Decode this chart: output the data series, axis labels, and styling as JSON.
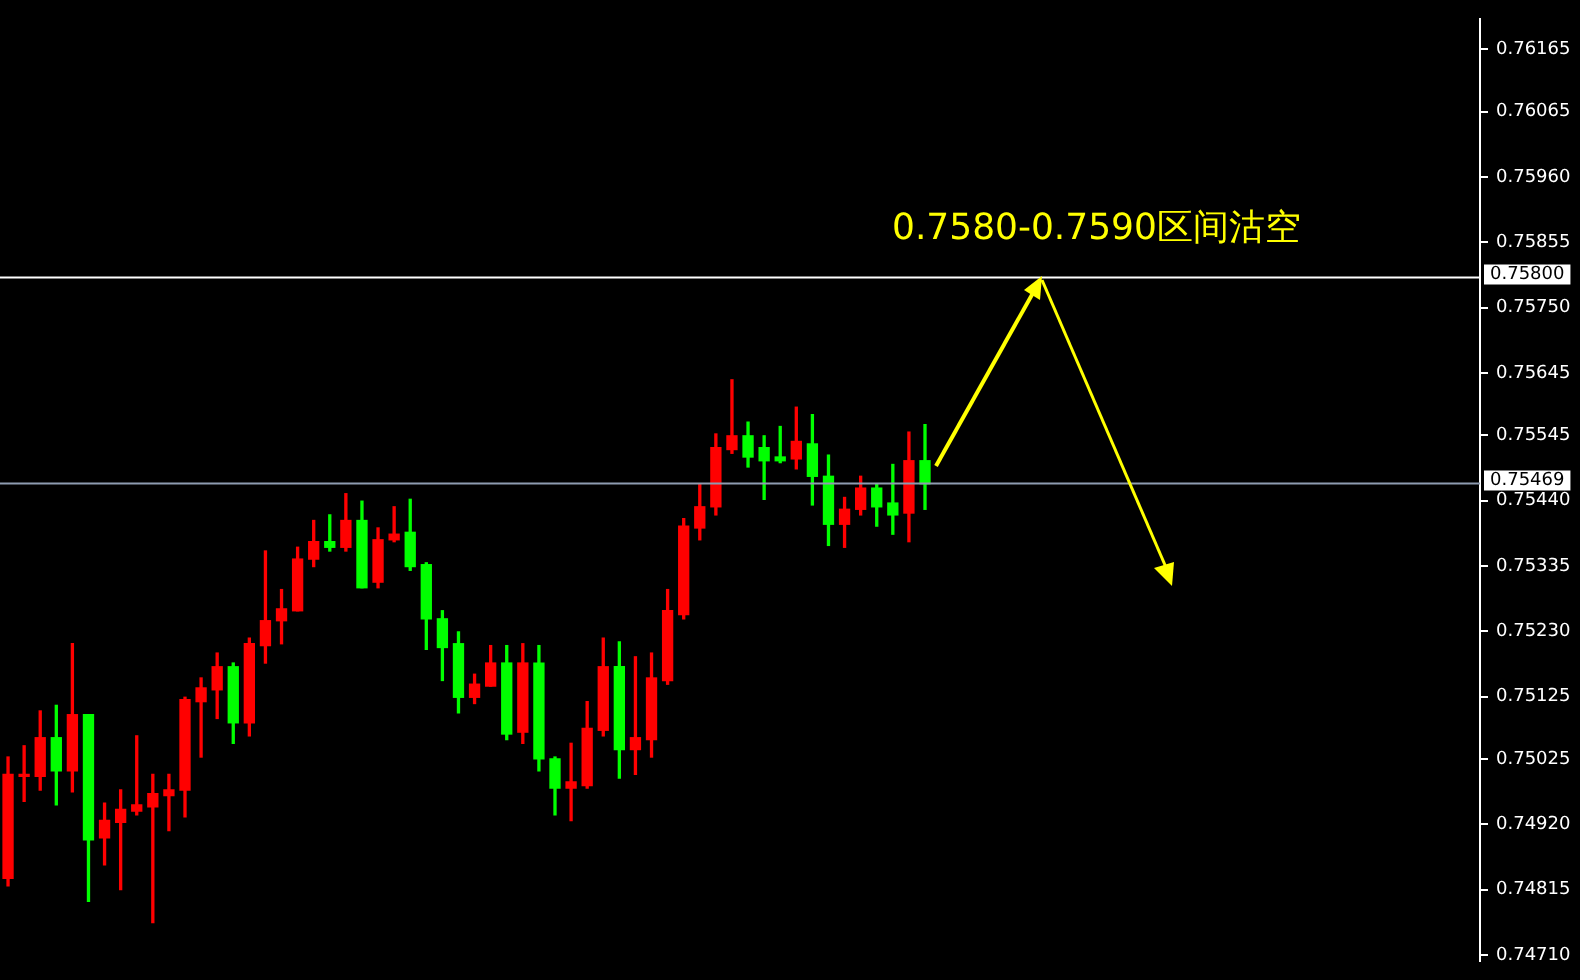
{
  "chart_data": {
    "type": "candlestick",
    "categories": [
      null,
      null,
      null,
      null,
      null,
      null,
      null,
      null,
      null,
      null,
      null,
      null,
      null,
      null,
      null,
      null,
      null,
      null,
      null,
      null,
      null,
      null,
      null,
      null,
      null,
      null,
      null,
      null,
      null,
      null,
      null,
      null,
      null,
      null,
      null,
      null,
      null,
      null,
      null,
      null,
      null,
      null,
      null,
      null,
      null,
      null,
      null,
      null,
      null,
      null,
      null,
      null,
      null,
      null,
      null,
      null,
      null,
      null,
      null,
      null,
      null,
      null,
      null,
      null,
      null,
      null,
      null,
      null,
      null,
      null,
      null,
      null,
      null,
      null,
      null,
      null,
      null,
      null,
      null,
      null,
      null,
      null,
      null,
      null,
      null,
      null,
      null,
      null,
      null,
      null,
      null,
      null
    ],
    "ohlc": [
      [
        0.74833,
        0.75028,
        0.74821,
        0.75
      ],
      [
        0.74997,
        0.75046,
        0.74957,
        0.75
      ],
      [
        0.74997,
        0.75102,
        0.74975,
        0.75059
      ],
      [
        0.75059,
        0.75111,
        0.74951,
        0.75006
      ],
      [
        0.75006,
        0.7521,
        0.74972,
        0.75096
      ],
      [
        0.75096,
        0.75096,
        0.74796,
        0.74895
      ],
      [
        0.74898,
        0.74954,
        0.74855,
        0.74926
      ],
      [
        0.74923,
        0.74975,
        0.74815,
        0.74944
      ],
      [
        0.74941,
        0.75062,
        0.74935,
        0.74951
      ],
      [
        0.74948,
        0.75,
        0.74762,
        0.74969
      ],
      [
        0.74966,
        0.75,
        0.7491,
        0.74975
      ],
      [
        0.74975,
        0.75124,
        0.74932,
        0.7512
      ],
      [
        0.75117,
        0.75155,
        0.75028,
        0.75139
      ],
      [
        0.75136,
        0.75195,
        0.7509,
        0.75173
      ],
      [
        0.75173,
        0.75179,
        0.7505,
        0.75083
      ],
      [
        0.75083,
        0.75219,
        0.75062,
        0.7521
      ],
      [
        0.75207,
        0.75359,
        0.75179,
        0.75247
      ],
      [
        0.75247,
        0.75297,
        0.7521,
        0.75266
      ],
      [
        0.75263,
        0.75365,
        0.75263,
        0.75346
      ],
      [
        0.75346,
        0.75408,
        0.75334,
        0.75374
      ],
      [
        0.75374,
        0.75417,
        0.75359,
        0.75365
      ],
      [
        0.75365,
        0.75451,
        0.75359,
        0.75408
      ],
      [
        0.75408,
        0.75439,
        0.753,
        0.753
      ],
      [
        0.75309,
        0.75396,
        0.753,
        0.75377
      ],
      [
        0.75377,
        0.7543,
        0.75374,
        0.75386
      ],
      [
        0.75389,
        0.75442,
        0.75328,
        0.75334
      ],
      [
        0.75337,
        0.7534,
        0.75201,
        0.7525
      ],
      [
        0.7525,
        0.75263,
        0.75151,
        0.75204
      ],
      [
        0.7521,
        0.75229,
        0.75099,
        0.75124
      ],
      [
        0.75124,
        0.75161,
        0.75114,
        0.75145
      ],
      [
        0.75142,
        0.75207,
        0.75142,
        0.75179
      ],
      [
        0.75179,
        0.75207,
        0.75056,
        0.75065
      ],
      [
        0.75068,
        0.7521,
        0.7505,
        0.75179
      ],
      [
        0.75179,
        0.75207,
        0.75006,
        0.75025
      ],
      [
        0.75025,
        0.75028,
        0.74935,
        0.74978
      ],
      [
        0.74978,
        0.7505,
        0.74926,
        0.74988
      ],
      [
        0.74982,
        0.75117,
        0.74978,
        0.75074
      ],
      [
        0.75071,
        0.75219,
        0.75062,
        0.75173
      ],
      [
        0.75173,
        0.75213,
        0.74994,
        0.7504
      ],
      [
        0.7504,
        0.75189,
        0.75,
        0.75059
      ],
      [
        0.75056,
        0.75195,
        0.75028,
        0.75155
      ],
      [
        0.75151,
        0.75297,
        0.75145,
        0.75263
      ],
      [
        0.75257,
        0.75411,
        0.7525,
        0.75399
      ],
      [
        0.75396,
        0.75467,
        0.75377,
        0.7543
      ],
      [
        0.7543,
        0.75547,
        0.75417,
        0.75525
      ],
      [
        0.75522,
        0.75634,
        0.75516,
        0.75544
      ],
      [
        0.75544,
        0.75566,
        0.75494,
        0.7551
      ],
      [
        0.75525,
        0.75544,
        0.75442,
        0.75504
      ],
      [
        0.7551,
        0.75559,
        0.75501,
        0.75504
      ],
      [
        0.75507,
        0.7559,
        0.75491,
        0.75535
      ],
      [
        0.75531,
        0.75578,
        0.75433,
        0.75479
      ],
      [
        0.75479,
        0.75513,
        0.75368,
        0.75402
      ],
      [
        0.75402,
        0.75445,
        0.75365,
        0.75426
      ],
      [
        0.75426,
        0.75479,
        0.75417,
        0.7546
      ],
      [
        0.7546,
        0.75467,
        0.75399,
        0.7543
      ],
      [
        0.75436,
        0.75498,
        0.75386,
        0.75417
      ],
      [
        0.7542,
        0.7555,
        0.75374,
        0.75504
      ],
      [
        0.75504,
        0.75562,
        0.75426,
        0.75467
      ],
      null,
      null,
      null,
      null,
      null,
      null,
      null,
      null,
      null,
      null,
      null,
      null,
      null,
      null,
      null,
      null,
      null,
      null,
      null,
      null,
      null,
      null,
      null,
      null,
      null,
      null,
      null,
      null,
      null,
      null,
      null,
      null,
      null,
      null
    ],
    "colors": [
      "#ff0000",
      "#ff0000",
      "#ff0000",
      "#00ff00",
      "#ff0000",
      "#00ff00",
      "#ff0000",
      "#ff0000",
      "#ff0000",
      "#ff0000",
      "#ff0000",
      "#ff0000",
      "#ff0000",
      "#ff0000",
      "#00ff00",
      "#ff0000",
      "#ff0000",
      "#ff0000",
      "#ff0000",
      "#ff0000",
      "#00ff00",
      "#ff0000",
      "#00ff00",
      "#ff0000",
      "#ff0000",
      "#00ff00",
      "#00ff00",
      "#00ff00",
      "#00ff00",
      "#ff0000",
      "#ff0000",
      "#00ff00",
      "#ff0000",
      "#00ff00",
      "#00ff00",
      "#ff0000",
      "#ff0000",
      "#ff0000",
      "#00ff00",
      "#ff0000",
      "#ff0000",
      "#ff0000",
      "#ff0000",
      "#ff0000",
      "#ff0000",
      "#ff0000",
      "#00ff00",
      "#00ff00",
      "#00ff00",
      "#ff0000",
      "#00ff00",
      "#00ff00",
      "#ff0000",
      "#ff0000",
      "#00ff00",
      "#00ff00",
      "#ff0000",
      "#00ff00",
      null,
      null,
      null,
      null,
      null,
      null,
      null,
      null,
      null,
      null,
      null,
      null,
      null,
      null,
      null,
      null,
      null,
      null,
      null,
      null,
      null,
      null,
      null,
      null,
      null,
      null,
      null,
      null,
      null,
      null,
      null,
      null,
      null,
      null
    ],
    "ylim": [
      0.747,
      0.76214
    ],
    "yticks": [
      0.76165,
      0.76065,
      {
        "value": 0.7596,
        "label": "0.75960"
      },
      0.75855,
      {
        "value": 0.7575,
        "label": "0.75750"
      },
      0.75645,
      0.75545,
      {
        "value": 0.7544,
        "label": "0.75440"
      },
      0.75335,
      {
        "value": 0.7523,
        "label": "0.75230"
      },
      0.75125,
      0.75025,
      {
        "value": 0.7492,
        "label": "0.74920"
      },
      0.74815,
      {
        "value": 0.7471,
        "label": "0.74710"
      }
    ],
    "ref_lines": [
      {
        "axis": "y",
        "value": 0.758,
        "label": "0.75800",
        "color": "#ffffff"
      },
      {
        "axis": "y",
        "value": 0.75469,
        "label": "0.75469",
        "color": "#8e9bb0"
      }
    ],
    "annotations": [
      "0.7580-0.7590区间沽空"
    ],
    "tick_labels": "y",
    "grid": false,
    "legend": false
  }
}
